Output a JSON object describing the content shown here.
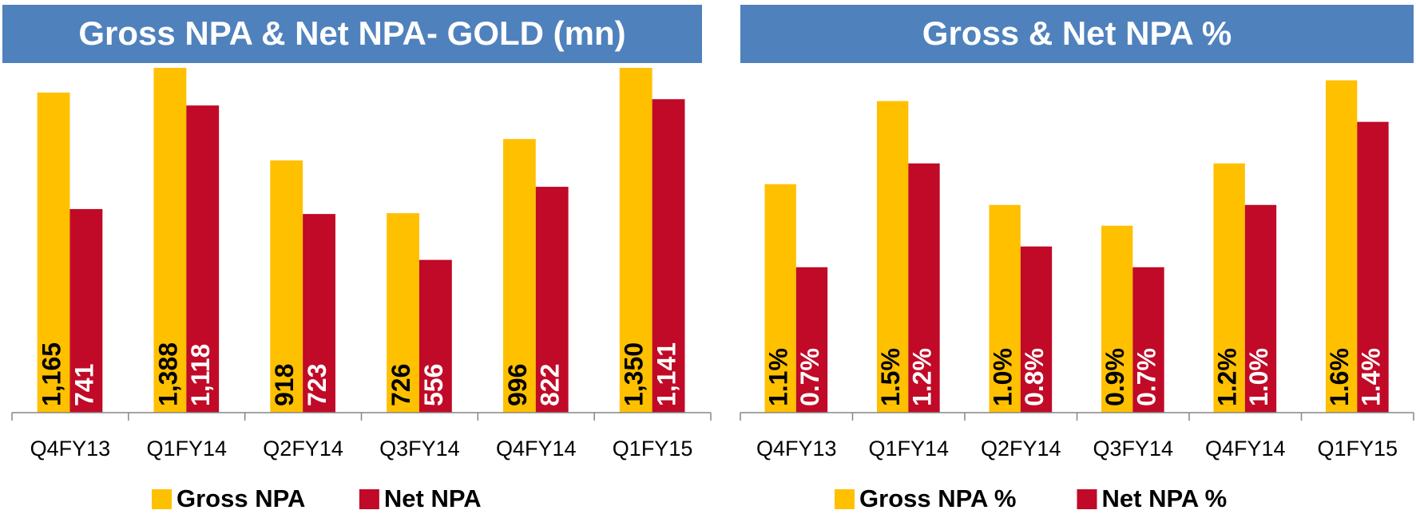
{
  "chart_data": [
    {
      "type": "bar",
      "title": "Gross NPA & Net NPA- GOLD (mn)",
      "categories": [
        "Q4FY13",
        "Q1FY14",
        "Q2FY14",
        "Q3FY14",
        "Q4FY14",
        "Q1FY15"
      ],
      "series": [
        {
          "name": "Gross NPA",
          "color": "#ffc000",
          "values": [
            1165,
            1388,
            918,
            726,
            996,
            1350
          ],
          "value_labels": [
            "1,165",
            "1,388",
            "918",
            "726",
            "996",
            "1,350"
          ]
        },
        {
          "name": "Net NPA",
          "color": "#c00a27",
          "values": [
            741,
            1118,
            723,
            556,
            822,
            1141
          ],
          "value_labels": [
            "741",
            "1,118",
            "723",
            "556",
            "822",
            "1,141"
          ]
        }
      ],
      "ylim": [
        0,
        1255
      ]
    },
    {
      "type": "bar",
      "title": "Gross & Net NPA %",
      "categories": [
        "Q4FY13",
        "Q1FY14",
        "Q2FY14",
        "Q3FY14",
        "Q4FY14",
        "Q1FY15"
      ],
      "series": [
        {
          "name": "Gross NPA %",
          "color": "#ffc000",
          "values": [
            1.1,
            1.5,
            1.0,
            0.9,
            1.2,
            1.6
          ],
          "value_labels": [
            "1.1%",
            "1.5%",
            "1.0%",
            "0.9%",
            "1.2%",
            "1.6%"
          ]
        },
        {
          "name": "Net NPA %",
          "color": "#c00a27",
          "values": [
            0.7,
            1.2,
            0.8,
            0.7,
            1.0,
            1.4
          ],
          "value_labels": [
            "0.7%",
            "1.2%",
            "0.8%",
            "0.7%",
            "1.0%",
            "1.4%"
          ]
        }
      ],
      "ylim": [
        0,
        1.66
      ]
    }
  ]
}
